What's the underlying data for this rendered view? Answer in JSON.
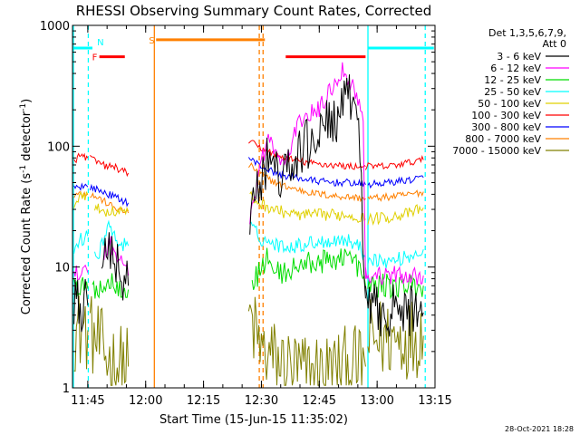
{
  "chart_data": {
    "type": "line",
    "title": "RHESSI Observing Summary Count Rates, Corrected",
    "xlabel": "Start Time (15-Jun-15 11:35:02)",
    "ylabel": "Corrected Count Rate (s",
    "ylabel_sup1": "-1",
    "ylabel_mid": " detector",
    "ylabel_sup2": "-1",
    "ylabel_end": ")",
    "yscale": "log",
    "xlim": [
      11.6839,
      13.25
    ],
    "ylim": [
      1,
      1000
    ],
    "x_ticks": [
      {
        "value": 11.75,
        "label": "11:45"
      },
      {
        "value": 12.0,
        "label": "12:00"
      },
      {
        "value": 12.25,
        "label": "12:15"
      },
      {
        "value": 12.5,
        "label": "12:30"
      },
      {
        "value": 12.75,
        "label": "12:45"
      },
      {
        "value": 13.0,
        "label": "13:00"
      },
      {
        "value": 13.25,
        "label": "13:15"
      }
    ],
    "y_ticks": [
      {
        "value": 1,
        "label": "1"
      },
      {
        "value": 10,
        "label": "10"
      },
      {
        "value": 100,
        "label": "100"
      },
      {
        "value": 1000,
        "label": "1000"
      }
    ],
    "legend_header": [
      "Det 1,3,5,6,7,9,",
      "Att 0"
    ],
    "footer_date": "28-Oct-2021 18:28",
    "series": [
      {
        "name": "3 - 6 keV",
        "color": "#000000",
        "noise": 0.22,
        "segments": [
          [
            [
              11.69,
              4.8
            ],
            [
              11.75,
              4.8
            ]
          ],
          [
            [
              11.81,
              8
            ],
            [
              11.83,
              15
            ],
            [
              11.86,
              11
            ],
            [
              11.89,
              9
            ],
            [
              11.925,
              7
            ]
          ],
          [
            [
              12.45,
              28
            ],
            [
              12.47,
              36
            ],
            [
              12.5,
              50
            ],
            [
              12.53,
              80
            ],
            [
              12.57,
              60
            ],
            [
              12.6,
              55
            ],
            [
              12.67,
              90
            ],
            [
              12.75,
              130
            ],
            [
              12.83,
              180
            ],
            [
              12.88,
              240
            ],
            [
              12.92,
              190
            ],
            [
              12.95,
              5.5
            ]
          ],
          [
            [
              12.95,
              4.5
            ],
            [
              13.2,
              4.2
            ]
          ]
        ]
      },
      {
        "name": "6 - 12 keV",
        "color": "#ff00ff",
        "noise": 0.08,
        "segments": [
          [
            [
              11.69,
              9
            ],
            [
              11.75,
              9
            ]
          ],
          [
            [
              11.82,
              12
            ],
            [
              11.845,
              17
            ],
            [
              11.87,
              12
            ],
            [
              11.9,
              12
            ],
            [
              11.925,
              8.5
            ]
          ],
          [
            [
              12.45,
              25
            ],
            [
              12.47,
              40
            ],
            [
              12.5,
              75
            ],
            [
              12.53,
              120
            ],
            [
              12.57,
              80
            ],
            [
              12.6,
              70
            ],
            [
              12.67,
              170
            ],
            [
              12.75,
              200
            ],
            [
              12.8,
              300
            ],
            [
              12.85,
              430
            ],
            [
              12.9,
              300
            ],
            [
              12.94,
              180
            ],
            [
              12.95,
              8
            ]
          ],
          [
            [
              12.95,
              8.5
            ],
            [
              13.2,
              8.5
            ]
          ]
        ]
      },
      {
        "name": "12 - 25 keV",
        "color": "#00dd00",
        "noise": 0.1,
        "segments": [
          [
            [
              11.69,
              6.5
            ],
            [
              11.75,
              6.6
            ]
          ],
          [
            [
              11.77,
              6.6
            ],
            [
              11.86,
              7.5
            ],
            [
              11.925,
              6.5
            ]
          ],
          [
            [
              12.46,
              7
            ],
            [
              12.5,
              10
            ],
            [
              12.53,
              12
            ],
            [
              12.56,
              9
            ],
            [
              12.6,
              9
            ],
            [
              12.65,
              10
            ],
            [
              12.72,
              11
            ],
            [
              12.8,
              11
            ],
            [
              12.86,
              13
            ],
            [
              12.92,
              10
            ],
            [
              12.95,
              7
            ]
          ],
          [
            [
              12.96,
              7
            ],
            [
              13.2,
              7
            ]
          ]
        ]
      },
      {
        "name": "25 - 50 keV",
        "color": "#00ffff",
        "noise": 0.06,
        "segments": [
          [
            [
              11.69,
              13
            ],
            [
              11.72,
              17
            ],
            [
              11.75,
              18
            ]
          ],
          [
            [
              11.78,
              12
            ],
            [
              11.8,
              13
            ],
            [
              11.84,
              24
            ],
            [
              11.855,
              19
            ],
            [
              11.88,
              16
            ],
            [
              11.925,
              15
            ]
          ],
          [
            [
              12.45,
              22
            ],
            [
              12.5,
              17
            ],
            [
              12.58,
              15
            ],
            [
              12.65,
              15
            ],
            [
              12.72,
              16
            ],
            [
              12.8,
              16.5
            ],
            [
              12.86,
              17
            ],
            [
              12.92,
              15
            ],
            [
              12.95,
              12
            ]
          ],
          [
            [
              12.96,
              12
            ],
            [
              13.05,
              11
            ],
            [
              13.15,
              12.5
            ],
            [
              13.2,
              14
            ]
          ]
        ]
      },
      {
        "name": "50 - 100 keV",
        "color": "#e0d000",
        "noise": 0.05,
        "segments": [
          [
            [
              11.69,
              33
            ],
            [
              11.72,
              40
            ],
            [
              11.75,
              40
            ]
          ],
          [
            [
              11.78,
              33
            ],
            [
              11.8,
              29
            ],
            [
              11.84,
              29
            ],
            [
              11.88,
              29
            ],
            [
              11.925,
              29
            ]
          ],
          [
            [
              12.45,
              38
            ],
            [
              12.5,
              33
            ],
            [
              12.58,
              29
            ],
            [
              12.65,
              27
            ],
            [
              12.72,
              27
            ],
            [
              12.8,
              27
            ],
            [
              12.88,
              27
            ],
            [
              12.95,
              25
            ]
          ],
          [
            [
              12.96,
              25
            ],
            [
              13.05,
              26
            ],
            [
              13.15,
              28
            ],
            [
              13.2,
              31
            ]
          ]
        ]
      },
      {
        "name": "100 - 300 keV",
        "color": "#ff0000",
        "noise": 0.03,
        "segments": [
          [
            [
              11.69,
              75
            ],
            [
              11.71,
              82
            ],
            [
              11.73,
              83
            ],
            [
              11.75,
              80
            ]
          ],
          [
            [
              11.76,
              80
            ],
            [
              11.8,
              72
            ],
            [
              11.83,
              68
            ],
            [
              11.85,
              68
            ],
            [
              11.87,
              67
            ],
            [
              11.9,
              62
            ],
            [
              11.925,
              60
            ]
          ],
          [
            [
              12.445,
              110
            ],
            [
              12.48,
              100
            ],
            [
              12.52,
              92
            ],
            [
              12.58,
              82
            ],
            [
              12.65,
              76
            ],
            [
              12.72,
              72
            ],
            [
              12.8,
              70
            ],
            [
              12.88,
              68
            ],
            [
              12.95,
              68
            ]
          ],
          [
            [
              12.95,
              68
            ],
            [
              13.05,
              68
            ],
            [
              13.15,
              74
            ],
            [
              13.2,
              77
            ]
          ]
        ]
      },
      {
        "name": "300 - 800 keV",
        "color": "#0000ff",
        "noise": 0.03,
        "segments": [
          [
            [
              11.69,
              46
            ],
            [
              11.73,
              47
            ],
            [
              11.75,
              46
            ]
          ],
          [
            [
              11.76,
              46
            ],
            [
              11.8,
              43
            ],
            [
              11.84,
              40
            ],
            [
              11.88,
              37
            ],
            [
              11.925,
              34
            ]
          ],
          [
            [
              12.445,
              80
            ],
            [
              12.48,
              72
            ],
            [
              12.52,
              65
            ],
            [
              12.58,
              58
            ],
            [
              12.65,
              55
            ],
            [
              12.72,
              52
            ],
            [
              12.8,
              50
            ],
            [
              12.88,
              50
            ],
            [
              12.95,
              48
            ]
          ],
          [
            [
              12.96,
              48
            ],
            [
              13.05,
              50
            ],
            [
              13.15,
              53
            ],
            [
              13.2,
              55
            ]
          ]
        ]
      },
      {
        "name": "800 - 7000 keV",
        "color": "#ff8000",
        "noise": 0.03,
        "segments": [
          [
            [
              11.69,
              40
            ],
            [
              11.73,
              41
            ],
            [
              11.75,
              40
            ]
          ],
          [
            [
              11.76,
              40
            ],
            [
              11.8,
              37
            ],
            [
              11.84,
              33
            ],
            [
              11.88,
              30
            ],
            [
              11.925,
              28
            ]
          ],
          [
            [
              12.445,
              70
            ],
            [
              12.48,
              63
            ],
            [
              12.52,
              55
            ],
            [
              12.58,
              48
            ],
            [
              12.65,
              44
            ],
            [
              12.72,
              41
            ],
            [
              12.8,
              39
            ],
            [
              12.88,
              38
            ],
            [
              12.95,
              37
            ]
          ],
          [
            [
              12.96,
              37
            ],
            [
              13.05,
              38
            ],
            [
              13.15,
              40
            ],
            [
              13.2,
              42
            ]
          ]
        ]
      },
      {
        "name": "7000 - 15000 keV",
        "color": "#808000",
        "noise": 0.35,
        "segments": [
          [
            [
              11.69,
              3
            ],
            [
              11.75,
              3
            ]
          ],
          [
            [
              11.76,
              2.8
            ],
            [
              11.8,
              2.2
            ],
            [
              11.85,
              1.6
            ],
            [
              11.925,
              1.5
            ]
          ],
          [
            [
              12.445,
              4
            ],
            [
              12.5,
              2
            ],
            [
              12.6,
              1.5
            ],
            [
              12.7,
              1.3
            ],
            [
              12.8,
              1.4
            ],
            [
              12.9,
              1.5
            ],
            [
              12.95,
              1.5
            ]
          ],
          [
            [
              12.96,
              2.5
            ],
            [
              13.1,
              2.6
            ],
            [
              13.2,
              2.7
            ]
          ]
        ]
      }
    ],
    "annotations": {
      "bars": [
        {
          "label": "",
          "color": "#00ffff",
          "x0": 11.685,
          "x1": 11.77,
          "y": 650
        },
        {
          "label": "",
          "color": "#00ffff",
          "x0": 12.96,
          "x1": 13.245,
          "y": 650
        },
        {
          "label": "N",
          "color": "#00ffff",
          "x0": 11.77,
          "x1": 11.77,
          "y": 650
        },
        {
          "label": "F",
          "color": "#ff0000",
          "x0": 11.8,
          "x1": 11.91,
          "y": 550
        },
        {
          "label": "",
          "color": "#ff0000",
          "x0": 12.605,
          "x1": 12.95,
          "y": 550
        },
        {
          "label": "S",
          "color": "#ff8000",
          "x0": 12.045,
          "x1": 12.515,
          "y": 760
        }
      ],
      "vlines": [
        {
          "x": 11.6878,
          "color": "#00ffff",
          "style": "solid"
        },
        {
          "x": 11.7522,
          "color": "#00ffff",
          "style": "dashed"
        },
        {
          "x": 12.0375,
          "color": "#ff8000",
          "style": "solid"
        },
        {
          "x": 12.4908,
          "color": "#ff8000",
          "style": "dashed"
        },
        {
          "x": 12.5072,
          "color": "#ff8000",
          "style": "dashed"
        },
        {
          "x": 12.9603,
          "color": "#00ffff",
          "style": "solid"
        },
        {
          "x": 13.2078,
          "color": "#00ffff",
          "style": "dashed"
        }
      ]
    }
  }
}
